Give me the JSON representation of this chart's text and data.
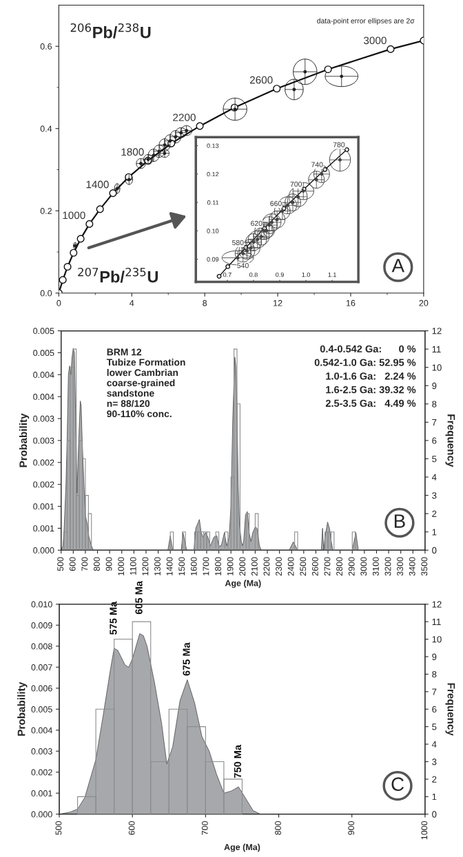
{
  "chart_data": [
    {
      "type": "line",
      "ylabel": "$^{206}$Pb/$^{238}$U",
      "xlabel": "$^{207}$Pb/$^{235}$U",
      "xlim": [
        0,
        20
      ],
      "ylim": [
        0,
        0.7
      ],
      "xticks": [
        0,
        {
          "value": 2,
          "label": null
        },
        4,
        {
          "value": 6,
          "label": null
        },
        8,
        {
          "value": 10,
          "label": null
        },
        12,
        {
          "value": 14,
          "label": null
        },
        16,
        {
          "value": 18,
          "label": null
        },
        20
      ],
      "yticks": [
        {
          "value": 0,
          "label": "0.0"
        },
        {
          "value": 0.1,
          "label": null
        },
        0.2,
        {
          "value": 0.3,
          "label": null
        },
        0.4,
        {
          "value": 0.5,
          "label": null
        },
        0.6
      ],
      "marker": "circle",
      "grid": false,
      "series": [
        {
          "color": "#111111",
          "x": [
            0,
            0.22,
            0.48,
            0.81,
            1.2,
            1.68,
            2.26,
            2.97,
            3.83,
            4.89,
            6.17,
            7.73,
            9.63,
            11.95,
            14.76,
            18.19,
            20
          ],
          "values": [
            0,
            0.032,
            0.064,
            0.098,
            0.132,
            0.168,
            0.204,
            0.243,
            0.282,
            0.322,
            0.364,
            0.406,
            0.451,
            0.497,
            0.544,
            0.593,
            0.614
          ]
        },
        {
          "type": "scatter",
          "color": "#222222",
          "x": [
            0.9,
            3.2,
            3.85,
            4.5,
            4.9,
            5.2,
            5.5,
            5.8,
            6.1,
            6.4,
            6.7,
            7.0,
            5.8,
            9.66,
            12.9,
            13.5,
            15.5
          ],
          "values": [
            0.115,
            0.254,
            0.276,
            0.315,
            0.325,
            0.335,
            0.345,
            0.36,
            0.37,
            0.38,
            0.39,
            0.395,
            0.34,
            0.447,
            0.495,
            0.538,
            0.527
          ],
          "xerrors": [
            0.1,
            0.15,
            0.2,
            0.25,
            0.25,
            0.3,
            0.3,
            0.3,
            0.3,
            0.3,
            0.3,
            0.3,
            0.25,
            0.65,
            0.5,
            0.65,
            0.9
          ],
          "errors": [
            0.008,
            0.012,
            0.012,
            0.012,
            0.012,
            0.015,
            0.015,
            0.015,
            0.015,
            0.015,
            0.012,
            0.012,
            0.01,
            0.027,
            0.025,
            0.031,
            0.025
          ]
        }
      ],
      "annotations": [
        "data-point error ellipses are 2σ",
        {
          "text": "1000",
          "x": 1.68,
          "y": 0.168
        },
        {
          "text": "1400",
          "x": 2.97,
          "y": 0.243
        },
        {
          "text": "1800",
          "x": 4.89,
          "y": 0.322
        },
        {
          "text": "2200",
          "x": 7.73,
          "y": 0.406
        },
        {
          "text": "2600",
          "x": 11.95,
          "y": 0.497
        },
        {
          "text": "3000",
          "x": 18.19,
          "y": 0.593
        },
        "A"
      ]
    },
    {
      "type": "line",
      "xlim": [
        0.58,
        1.2
      ],
      "ylim": [
        0.082,
        0.133
      ],
      "xticks": [
        0.7,
        0.8,
        0.9,
        {
          "value": 1,
          "label": "1.0"
        },
        1.1
      ],
      "yticks": [
        0.09,
        {
          "value": 0.1,
          "label": "0.10"
        },
        0.11,
        0.12,
        0.13
      ],
      "marker": "circle",
      "grid": false,
      "series": [
        {
          "color": "#111111",
          "x": [
            0.6688,
            0.702,
            0.7705,
            0.8415,
            0.9157,
            0.9925,
            1.0726,
            1.156
          ],
          "values": [
            0.084,
            0.0874,
            0.0941,
            0.1009,
            0.1079,
            0.1147,
            0.1216,
            0.1286
          ]
        },
        {
          "type": "scatter",
          "color": "#444444",
          "x": [
            0.74,
            0.76,
            0.775,
            0.79,
            0.8,
            0.815,
            0.83,
            0.84,
            0.85,
            0.86,
            0.87,
            0.89,
            0.91,
            0.93,
            0.95,
            0.97,
            0.99,
            1.04,
            1.06,
            1.13
          ],
          "values": [
            0.0905,
            0.092,
            0.093,
            0.094,
            0.096,
            0.097,
            0.098,
            0.1,
            0.1,
            0.102,
            0.103,
            0.104,
            0.107,
            0.109,
            0.11,
            0.112,
            0.114,
            0.118,
            0.12,
            0.125
          ],
          "xerrors": [
            0.06,
            0.03,
            0.03,
            0.035,
            0.03,
            0.035,
            0.03,
            0.035,
            0.03,
            0.03,
            0.035,
            0.03,
            0.03,
            0.035,
            0.03,
            0.035,
            0.04,
            0.03,
            0.03,
            0.04
          ],
          "errors": [
            0.0025,
            0.003,
            0.003,
            0.003,
            0.003,
            0.003,
            0.003,
            0.003,
            0.0025,
            0.003,
            0.003,
            0.003,
            0.003,
            0.003,
            0.003,
            0.0035,
            0.003,
            0.003,
            0.003,
            0.004
          ]
        }
      ],
      "annotations": [
        {
          "text": "540",
          "x": 0.702,
          "y": 0.0874
        },
        {
          "text": "580",
          "x": 0.7705,
          "y": 0.0941
        },
        {
          "text": "620",
          "x": 0.8415,
          "y": 0.1009
        },
        {
          "text": "660",
          "x": 0.9157,
          "y": 0.1079
        },
        {
          "text": "700",
          "x": 0.9925,
          "y": 0.1147
        },
        {
          "text": "740",
          "x": 1.0726,
          "y": 0.1216
        },
        {
          "text": "780",
          "x": 1.156,
          "y": 0.1286
        }
      ]
    },
    {
      "type": "histogram",
      "xlabel": "Age (Ma)",
      "ylabel": "Probability",
      "y2label": "Frequency",
      "xlim": [
        500,
        3500
      ],
      "ylim": [
        0,
        0.005
      ],
      "y2lim": [
        0,
        12
      ],
      "grid": false,
      "xticks": [
        500,
        600,
        700,
        800,
        900,
        1000,
        1100,
        1200,
        1300,
        1400,
        1500,
        1600,
        1700,
        1800,
        1900,
        2000,
        2100,
        2200,
        2300,
        2400,
        2500,
        2600,
        2700,
        2800,
        2900,
        3000,
        3100,
        3200,
        3300,
        3400,
        3500
      ],
      "yticks": [
        {
          "value": 0,
          "label": "0.000"
        },
        {
          "value": 0.0005,
          "label": "0.001"
        },
        {
          "value": 0.001,
          "label": "0.001"
        },
        {
          "value": 0.0015,
          "label": "0.002"
        },
        {
          "value": 0.002,
          "label": "0.002"
        },
        {
          "value": 0.0025,
          "label": "0.003"
        },
        {
          "value": 0.003,
          "label": "0.003"
        },
        {
          "value": 0.0035,
          "label": "0.004"
        },
        {
          "value": 0.004,
          "label": "0.004"
        },
        {
          "value": 0.0045,
          "label": "0.005"
        },
        {
          "value": 0.005,
          "label": "0.005"
        }
      ],
      "y2ticks": [
        0,
        1,
        2,
        3,
        4,
        5,
        6,
        7,
        8,
        9,
        10,
        11,
        12
      ],
      "series": [
        {
          "type": "area",
          "color": "#a6a8ab",
          "x": [
            500,
            515,
            525,
            540,
            550,
            560,
            570,
            580,
            590,
            600,
            610,
            620,
            631,
            645,
            658,
            665,
            675,
            690,
            700,
            715,
            730,
            750,
            765,
            1380,
            1400,
            1420,
            1490,
            1505,
            1535,
            1595,
            1610,
            1625,
            1640,
            1655,
            1670,
            1690,
            1710,
            1730,
            1760,
            1784,
            1800,
            1820,
            1846,
            1865,
            1885,
            1900,
            1915,
            1932,
            1940,
            1950,
            1960,
            1970,
            1985,
            1995,
            2005,
            2020,
            2035,
            2050,
            2065,
            2080,
            2100,
            2115,
            2135,
            2150,
            2380,
            2414,
            2450,
            2645,
            2655,
            2665,
            2675,
            2697,
            2712,
            2727,
            2740,
            2900,
            2930,
            2950,
            3500
          ],
          "values": [
            0,
            0.0001,
            0.0005,
            0.0015,
            0.0026,
            0.004,
            0.0042,
            0.004,
            0.0044,
            0.0046,
            0.0045,
            0.003,
            0.0013,
            0.0025,
            0.0034,
            0.0033,
            0.0024,
            0.0014,
            0.0008,
            0.0006,
            0.0003,
            0.0001,
            0,
            0,
            0.00033,
            0,
            0,
            0.0004,
            0,
            0,
            0.0005,
            0.0006,
            0.0007,
            0.0004,
            0.0003,
            0.0004,
            0.0003,
            0.0001,
            0.0003,
            0.00033,
            0.0001,
            0.0001,
            0.0004,
            0.0001,
            0.0003,
            0.001,
            0.003,
            0.0044,
            0.0042,
            0.0032,
            0.0015,
            0.0006,
            0.0002,
            0.0001,
            0.0002,
            0.0008,
            0.00088,
            0.0004,
            0.0002,
            0.0004,
            0.00053,
            0.0005,
            0.0001,
            0,
            0,
            0.00019,
            0,
            0,
            0.0005,
            0,
            0.0003,
            0.00064,
            0.0005,
            0.0002,
            0,
            0,
            0.0004,
            0,
            0
          ]
        },
        {
          "axis": "y2",
          "color": "#8c8c8c",
          "bins": [
            500,
            525,
            550,
            575,
            600,
            625,
            650,
            675,
            700,
            725,
            750,
            775,
            800,
            825,
            850,
            875,
            900,
            925,
            950,
            975,
            1000,
            1025,
            1050,
            1075,
            1100,
            1125,
            1150,
            1175,
            1200,
            1225,
            1250,
            1275,
            1300,
            1325,
            1350,
            1375,
            1400,
            1425,
            1450,
            1475,
            1500,
            1525,
            1550,
            1575,
            1600,
            1625,
            1650,
            1675,
            1700,
            1725,
            1750,
            1775,
            1800,
            1825,
            1850,
            1875,
            1900,
            1925,
            1950,
            1975,
            2000,
            2025,
            2050,
            2075,
            2100,
            2125,
            2150,
            2175,
            2200,
            2225,
            2250,
            2275,
            2300,
            2325,
            2350,
            2375,
            2400,
            2425,
            2450,
            2475,
            2500,
            2525,
            2550,
            2575,
            2600,
            2625,
            2650,
            2675,
            2700,
            2725,
            2750,
            2775,
            2800,
            2825,
            2850,
            2875,
            2900,
            2925,
            2950,
            2975,
            3000
          ],
          "values": [
            0,
            1,
            6,
            10,
            11,
            3,
            6,
            5,
            3,
            2,
            0,
            0,
            0,
            0,
            0,
            0,
            0,
            0,
            0,
            0,
            0,
            0,
            0,
            0,
            0,
            0,
            0,
            0,
            0,
            0,
            0,
            0,
            0,
            0,
            0,
            0,
            1,
            0,
            0,
            0,
            1,
            0,
            0,
            0,
            1,
            1,
            1,
            1,
            1,
            0,
            0,
            1,
            0,
            0,
            1,
            0,
            4,
            11,
            8,
            0,
            0,
            2,
            0,
            0,
            2,
            0,
            0,
            0,
            0,
            0,
            0,
            0,
            0,
            0,
            0,
            0,
            0,
            1,
            0,
            0,
            0,
            0,
            0,
            0,
            0,
            0,
            0,
            1,
            1,
            1,
            0,
            0,
            0,
            0,
            0,
            0,
            1,
            0,
            0,
            0
          ]
        }
      ],
      "annotations": [
        "BRM 12\nTubize Formation\nlower Cambrian\ncoarse-grained\nsandstone\nn= 88/120\n90-110% conc.",
        "0.4-0.542 Ga:      0 %",
        "0.542-1.0 Ga: 52.95 %",
        "1.0-1.6 Ga:   2.24 %",
        "1.6-2.5 Ga: 39.32 %",
        "2.5-3.5 Ga:   4.49 %",
        "B"
      ]
    },
    {
      "type": "histogram",
      "xlabel": "Age (Ma)",
      "ylabel": "Probability",
      "y2label": "Frequency",
      "xlim": [
        500,
        1000
      ],
      "ylim": [
        0,
        0.01
      ],
      "y2lim": [
        0,
        12
      ],
      "grid": false,
      "xticks": [
        500,
        600,
        700,
        800,
        900,
        1000
      ],
      "yticks": [
        {
          "value": 0,
          "label": "0.000"
        },
        {
          "value": 0.001,
          "label": "0.001"
        },
        {
          "value": 0.002,
          "label": "0.002"
        },
        {
          "value": 0.003,
          "label": "0.003"
        },
        {
          "value": 0.004,
          "label": "0.004"
        },
        {
          "value": 0.005,
          "label": "0.005"
        },
        {
          "value": 0.006,
          "label": "0.006"
        },
        {
          "value": 0.007,
          "label": "0.007"
        },
        {
          "value": 0.008,
          "label": "0.008"
        },
        {
          "value": 0.009,
          "label": "0.009"
        },
        {
          "value": 0.01,
          "label": "0.010"
        }
      ],
      "y2ticks": [
        0,
        1,
        2,
        3,
        4,
        5,
        6,
        7,
        8,
        9,
        10,
        11,
        12
      ],
      "series": [
        {
          "type": "area",
          "color": "#a6a8ab",
          "x": [
            500,
            515,
            525,
            535,
            550,
            560,
            570,
            575,
            580,
            590,
            595,
            600,
            610,
            615,
            620,
            630,
            640,
            647,
            655,
            665,
            675,
            685,
            695,
            705,
            715,
            725,
            735,
            745,
            755,
            765,
            775,
            785,
            1000
          ],
          "values": [
            0,
            0.0001,
            0.00024,
            0.0008,
            0.0026,
            0.0047,
            0.0069,
            0.0079,
            0.0078,
            0.0071,
            0.007,
            0.0074,
            0.0086,
            0.0085,
            0.008,
            0.0063,
            0.0043,
            0.0024,
            0.0032,
            0.0054,
            0.0064,
            0.0053,
            0.0037,
            0.003,
            0.0019,
            0.001,
            0.0011,
            0.0013,
            0.00074,
            0.00017,
            0,
            0,
            0
          ]
        },
        {
          "axis": "y2",
          "color": "#8c8c8c",
          "bins": [
            525,
            550,
            575,
            600,
            625,
            650,
            675,
            700,
            725,
            750
          ],
          "values": [
            1,
            6,
            10,
            11,
            3,
            6,
            5,
            3,
            2
          ]
        }
      ],
      "annotations": [
        {
          "text": "575 Ma",
          "x": 575,
          "y": 0.0079
        },
        {
          "text": "605 Ma",
          "x": 610,
          "y": 0.0086
        },
        {
          "text": "675 Ma",
          "x": 675,
          "y": 0.0064
        },
        {
          "text": "750 Ma",
          "x": 745,
          "y": 0.0013
        },
        "C"
      ]
    }
  ]
}
